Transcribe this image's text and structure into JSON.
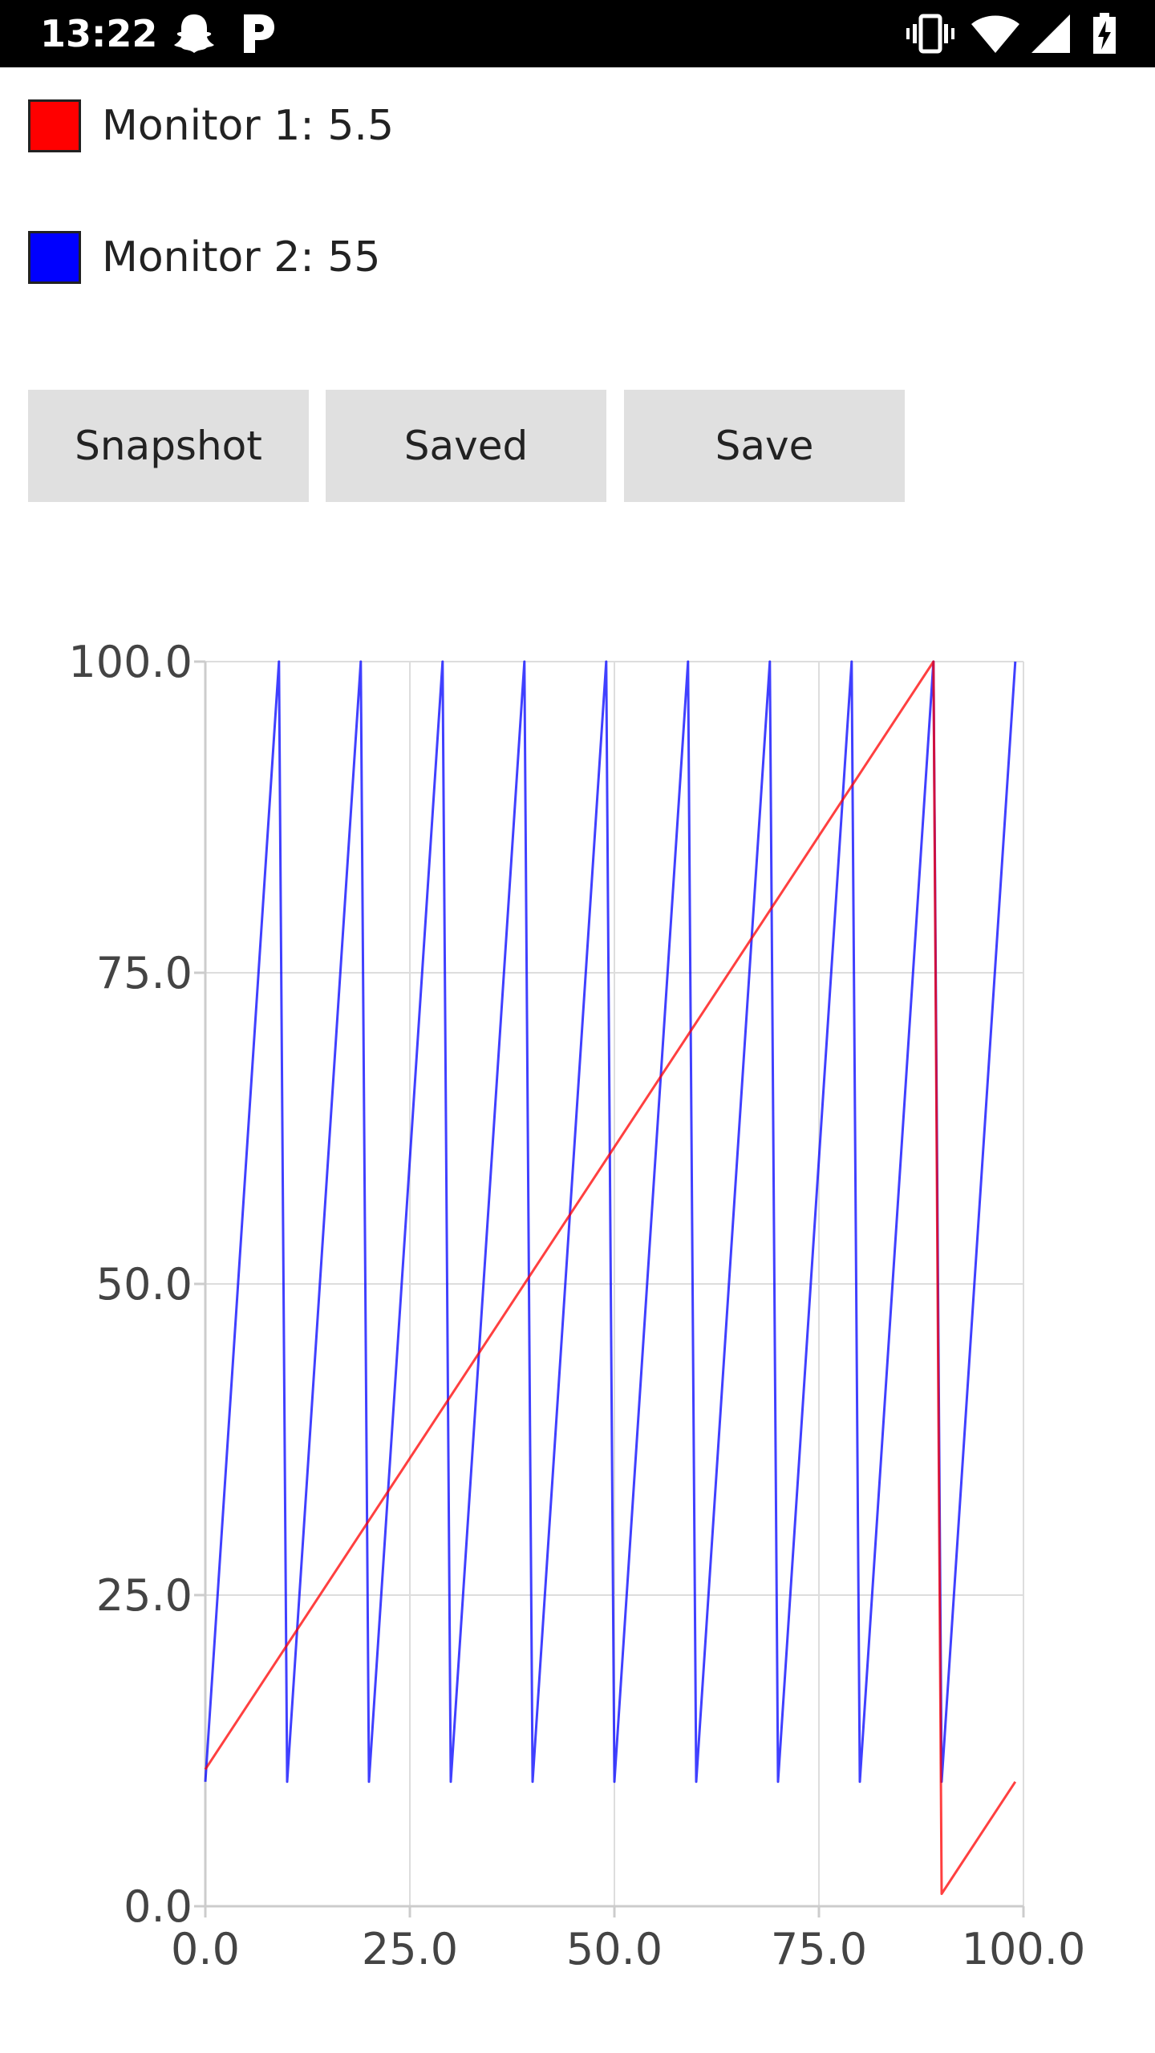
{
  "status_bar": {
    "time": "13:22",
    "left_icons": [
      "snapchat-ghost-icon",
      "pandora-p-icon"
    ],
    "right_icons": [
      "vibrate-icon",
      "wifi-icon",
      "cell-signal-icon",
      "battery-charging-icon"
    ]
  },
  "legend": [
    {
      "label": "Monitor 1: 5.5",
      "color": "#ff0000"
    },
    {
      "label": "Monitor 2: 55",
      "color": "#0000ff"
    }
  ],
  "buttons": {
    "snapshot": "Snapshot",
    "saved": "Saved",
    "save": "Save"
  },
  "chart_data": {
    "type": "line",
    "xlim": [
      0,
      100
    ],
    "ylim": [
      0,
      100
    ],
    "x_ticks": [
      "0.0",
      "25.0",
      "50.0",
      "75.0",
      "100.0"
    ],
    "y_ticks": [
      "0.0",
      "25.0",
      "50.0",
      "75.0",
      "100.0"
    ],
    "grid": true,
    "series": [
      {
        "color": "#ff0000",
        "points": [
          [
            0,
            11
          ],
          [
            89,
            100
          ],
          [
            90,
            1
          ],
          [
            99,
            10
          ]
        ]
      },
      {
        "color": "#0000ff",
        "points": [
          [
            0,
            10
          ],
          [
            9,
            100
          ],
          [
            10,
            10
          ],
          [
            19,
            100
          ],
          [
            20,
            10
          ],
          [
            29,
            100
          ],
          [
            30,
            10
          ],
          [
            39,
            100
          ],
          [
            40,
            10
          ],
          [
            49,
            100
          ],
          [
            50,
            10
          ],
          [
            59,
            100
          ],
          [
            60,
            10
          ],
          [
            69,
            100
          ],
          [
            70,
            10
          ],
          [
            79,
            100
          ],
          [
            80,
            10
          ],
          [
            89,
            100
          ],
          [
            90,
            10
          ],
          [
            99,
            100
          ]
        ]
      }
    ]
  }
}
